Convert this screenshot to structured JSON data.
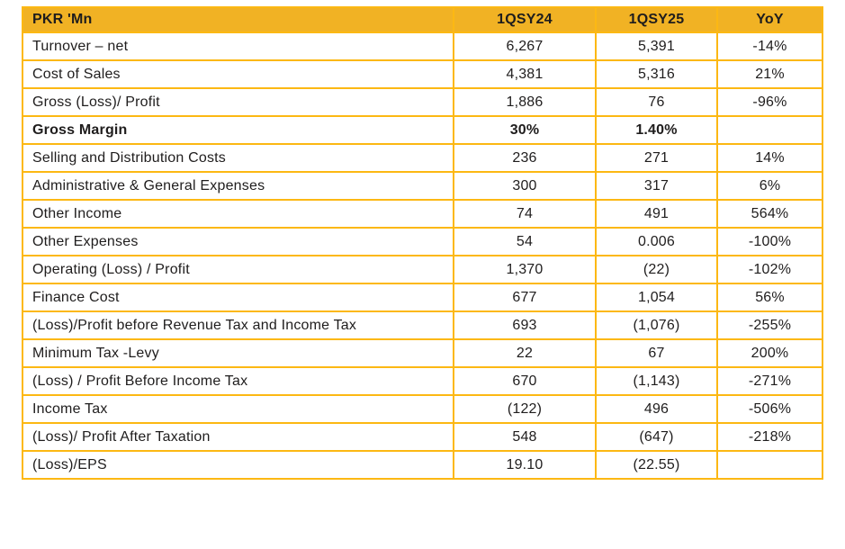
{
  "colors": {
    "header_bg": "#F1B224",
    "border": "#FCB813",
    "text": "#1F1D1D"
  },
  "table": {
    "columns": [
      "PKR 'Mn",
      "1QSY24",
      "1QSY25",
      "YoY"
    ],
    "rows": [
      {
        "label": "Turnover – net",
        "q24": "6,267",
        "q25": "5,391",
        "yoy": "-14%",
        "bold": false
      },
      {
        "label": "Cost of Sales",
        "q24": "4,381",
        "q25": "5,316",
        "yoy": "21%",
        "bold": false
      },
      {
        "label": "Gross (Loss)/ Profit",
        "q24": "1,886",
        "q25": "76",
        "yoy": "-96%",
        "bold": false
      },
      {
        "label": "Gross Margin",
        "q24": "30%",
        "q25": "1.40%",
        "yoy": "",
        "bold": true
      },
      {
        "label": "Selling and Distribution Costs",
        "q24": "236",
        "q25": "271",
        "yoy": "14%",
        "bold": false
      },
      {
        "label": "Administrative & General Expenses",
        "q24": "300",
        "q25": "317",
        "yoy": "6%",
        "bold": false
      },
      {
        "label": "Other Income",
        "q24": "74",
        "q25": "491",
        "yoy": "564%",
        "bold": false
      },
      {
        "label": "Other Expenses",
        "q24": "54",
        "q25": "0.006",
        "yoy": "-100%",
        "bold": false
      },
      {
        "label": "Operating (Loss) / Profit",
        "q24": "1,370",
        "q25": "(22)",
        "yoy": "-102%",
        "bold": false
      },
      {
        "label": "Finance Cost",
        "q24": "677",
        "q25": "1,054",
        "yoy": "56%",
        "bold": false
      },
      {
        "label": "(Loss)/Profit before Revenue Tax and Income Tax",
        "q24": "693",
        "q25": "(1,076)",
        "yoy": "-255%",
        "bold": false
      },
      {
        "label": "Minimum Tax -Levy",
        "q24": "22",
        "q25": "67",
        "yoy": "200%",
        "bold": false
      },
      {
        "label": "(Loss) / Profit Before Income Tax",
        "q24": "670",
        "q25": "(1,143)",
        "yoy": "-271%",
        "bold": false
      },
      {
        "label": "Income Tax",
        "q24": "(122)",
        "q25": "496",
        "yoy": "-506%",
        "bold": false
      },
      {
        "label": "(Loss)/ Profit After Taxation",
        "q24": "548",
        "q25": "(647)",
        "yoy": "-218%",
        "bold": false
      },
      {
        "label": "(Loss)/EPS",
        "q24": "19.10",
        "q25": "(22.55)",
        "yoy": "",
        "bold": false
      }
    ]
  }
}
